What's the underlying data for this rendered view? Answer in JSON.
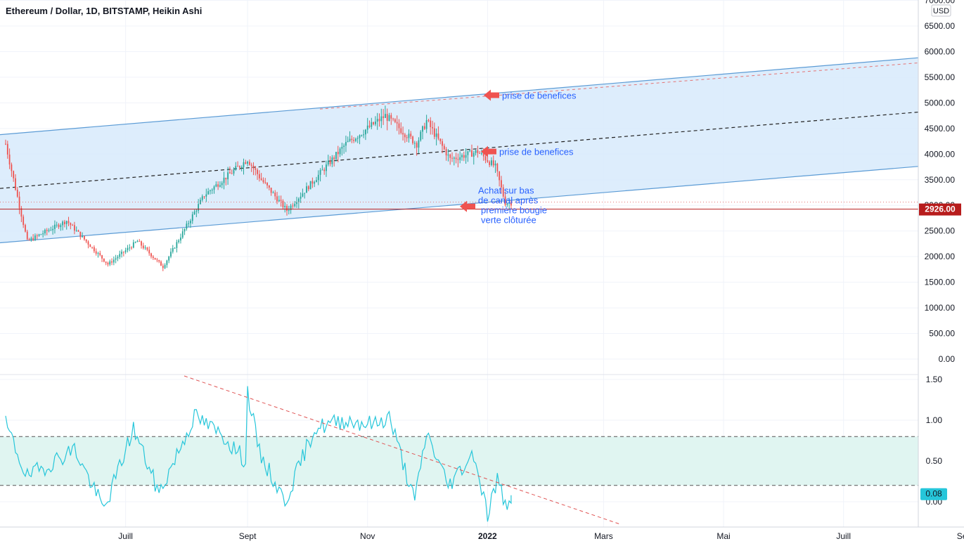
{
  "chart_data": [
    {
      "type": "candlestick",
      "title": "Ethereum / Dollar, 1D, BITSTAMP, Heikin Ashi",
      "currency": "USD",
      "y_ticks": [
        "7000.00",
        "6500.00",
        "6000.00",
        "5500.00",
        "5000.00",
        "4500.00",
        "4000.00",
        "3500.00",
        "3000.00",
        "2500.00",
        "2000.00",
        "1500.00",
        "1000.00",
        "500.00",
        "0.00"
      ],
      "ylim": [
        0,
        7000
      ],
      "x_ticks": [
        "Juill",
        "Sept",
        "Nov",
        "2022",
        "Mars",
        "Mai",
        "Juill",
        "Sept"
      ],
      "last_price": "2926.00",
      "last_price_value": 2926,
      "colors": {
        "up": "#26a69a",
        "down": "#ef5350",
        "channel_fill": "#d7eafb",
        "channel_line": "#5b9bd5",
        "price_line": "#b71c1c"
      },
      "key_points": [
        {
          "date": "2021-05-01",
          "value": 4200
        },
        {
          "date": "2021-05-12",
          "value": 2300
        },
        {
          "date": "2021-06-01",
          "value": 2700
        },
        {
          "date": "2021-06-22",
          "value": 1850
        },
        {
          "date": "2021-07-07",
          "value": 2300
        },
        {
          "date": "2021-07-20",
          "value": 1800
        },
        {
          "date": "2021-08-10",
          "value": 3200
        },
        {
          "date": "2021-09-01",
          "value": 3900
        },
        {
          "date": "2021-09-08",
          "value": 3500
        },
        {
          "date": "2021-09-21",
          "value": 2900
        },
        {
          "date": "2021-10-05",
          "value": 3500
        },
        {
          "date": "2021-10-21",
          "value": 4200
        },
        {
          "date": "2021-11-10",
          "value": 4750
        },
        {
          "date": "2021-11-26",
          "value": 4200
        },
        {
          "date": "2021-12-01",
          "value": 4650
        },
        {
          "date": "2021-12-13",
          "value": 3900
        },
        {
          "date": "2021-12-27",
          "value": 4050
        },
        {
          "date": "2022-01-05",
          "value": 3750
        },
        {
          "date": "2022-01-10",
          "value": 3050
        },
        {
          "date": "2022-01-13",
          "value": 3050
        }
      ],
      "annotations": [
        {
          "text": "prise de benefices",
          "value": 5150
        },
        {
          "text": "prise de benefices",
          "value": 4050
        },
        {
          "lines": [
            "Achat sur bas",
            "de canal après",
            "première bougie",
            "verte clôturée"
          ],
          "value": 2980
        }
      ]
    },
    {
      "type": "line",
      "y_ticks": [
        "1.50",
        "1.00",
        "0.50",
        "0.00"
      ],
      "ylim": [
        -0.3,
        1.5
      ],
      "band": [
        0.2,
        0.8
      ],
      "last_value": "0.08",
      "colors": {
        "line": "#26c6da",
        "band_fill": "#e0f5f1",
        "badge": "#26c6da",
        "trend": "#e05555"
      },
      "key_points": [
        {
          "date": "2021-05-01",
          "value": 0.95
        },
        {
          "date": "2021-05-12",
          "value": 0.3
        },
        {
          "date": "2021-06-05",
          "value": 0.65
        },
        {
          "date": "2021-06-20",
          "value": -0.1
        },
        {
          "date": "2021-07-05",
          "value": 0.9
        },
        {
          "date": "2021-07-18",
          "value": 0.1
        },
        {
          "date": "2021-08-05",
          "value": 1.05
        },
        {
          "date": "2021-08-20",
          "value": 0.8
        },
        {
          "date": "2021-08-31",
          "value": 0.5
        },
        {
          "date": "2021-09-01",
          "value": 1.35
        },
        {
          "date": "2021-09-07",
          "value": 0.6
        },
        {
          "date": "2021-09-20",
          "value": 0.0
        },
        {
          "date": "2021-10-05",
          "value": 0.9
        },
        {
          "date": "2021-10-20",
          "value": 1.0
        },
        {
          "date": "2021-11-05",
          "value": 0.95
        },
        {
          "date": "2021-11-12",
          "value": 1.05
        },
        {
          "date": "2021-11-25",
          "value": 0.0
        },
        {
          "date": "2021-12-01",
          "value": 0.85
        },
        {
          "date": "2021-12-12",
          "value": 0.2
        },
        {
          "date": "2021-12-25",
          "value": 0.6
        },
        {
          "date": "2022-01-01",
          "value": -0.15
        },
        {
          "date": "2022-01-06",
          "value": 0.28
        },
        {
          "date": "2022-01-10",
          "value": -0.05
        },
        {
          "date": "2022-01-13",
          "value": 0.08
        }
      ]
    }
  ]
}
